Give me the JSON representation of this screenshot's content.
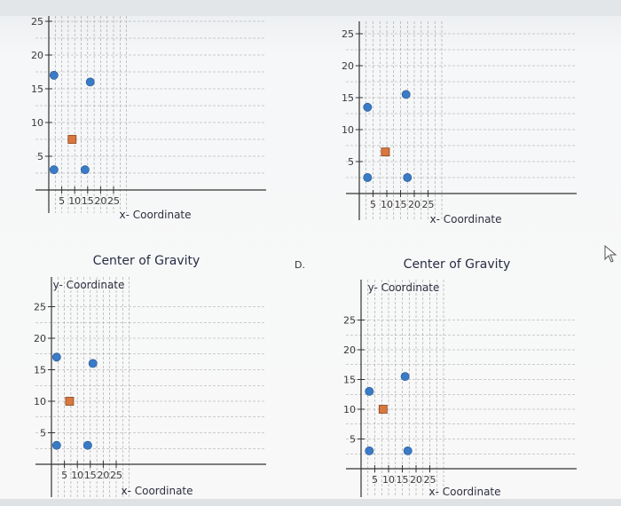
{
  "icons": {
    "pointer": "mouse-pointer-icon"
  },
  "colors": {
    "circle_marker": "#3a7bc8",
    "square_marker": "#d8773f",
    "grid": "#a0a0a0",
    "axis": "#333333"
  },
  "chart_data": [
    {
      "type": "scatter",
      "option": "",
      "title": "",
      "xlabel": "x- Coordinate",
      "ylabel": "",
      "xlim": [
        -1,
        30
      ],
      "ylim": [
        -3,
        27
      ],
      "xticks": [
        "5",
        "10",
        "15",
        "20",
        "25"
      ],
      "yticks": [
        "5",
        "10",
        "15",
        "20",
        "25"
      ],
      "grid": true,
      "series": [
        {
          "marker": "circle",
          "points": [
            [
              2,
              17
            ],
            [
              2,
              3
            ],
            [
              16,
              16
            ],
            [
              14,
              3
            ]
          ]
        },
        {
          "marker": "square",
          "points": [
            [
              9,
              7.5
            ]
          ]
        }
      ]
    },
    {
      "type": "scatter",
      "option": "",
      "title": "",
      "xlabel": "x- Coordinate",
      "ylabel": "",
      "xlim": [
        -1,
        30
      ],
      "ylim": [
        -3,
        27
      ],
      "xticks": [
        "5",
        "10",
        "15",
        "20",
        "25"
      ],
      "yticks": [
        "5",
        "10",
        "15",
        "20",
        "25"
      ],
      "grid": true,
      "series": [
        {
          "marker": "circle",
          "points": [
            [
              3,
              13.5
            ],
            [
              3,
              2.5
            ],
            [
              17,
              15.5
            ],
            [
              17.5,
              2.5
            ]
          ]
        },
        {
          "marker": "square",
          "points": [
            [
              9.5,
              6.5
            ]
          ]
        }
      ]
    },
    {
      "type": "scatter",
      "option": "",
      "title": "Center of Gravity",
      "xlabel": "x- Coordinate",
      "ylabel": "y- Coordinate",
      "xlim": [
        -1,
        30
      ],
      "ylim": [
        -3,
        27
      ],
      "xticks": [
        "5",
        "10",
        "15",
        "20",
        "25"
      ],
      "yticks": [
        "5",
        "10",
        "15",
        "20",
        "25"
      ],
      "grid": true,
      "series": [
        {
          "marker": "circle",
          "points": [
            [
              2,
              17
            ],
            [
              2,
              3
            ],
            [
              16,
              16
            ],
            [
              14,
              3
            ]
          ]
        },
        {
          "marker": "square",
          "points": [
            [
              7,
              10
            ]
          ]
        }
      ]
    },
    {
      "type": "scatter",
      "option": "D.",
      "title": "Center of Gravity",
      "xlabel": "x- Coordinate",
      "ylabel": "y- Coordinate",
      "xlim": [
        -1,
        30
      ],
      "ylim": [
        -3,
        27
      ],
      "xticks": [
        "5",
        "10",
        "15",
        "20",
        "25"
      ],
      "yticks": [
        "5",
        "10",
        "15",
        "20",
        "25"
      ],
      "grid": true,
      "series": [
        {
          "marker": "circle",
          "points": [
            [
              3,
              13
            ],
            [
              3,
              3
            ],
            [
              16,
              15.5
            ],
            [
              17,
              3
            ]
          ]
        },
        {
          "marker": "square",
          "points": [
            [
              8,
              10
            ]
          ]
        }
      ]
    }
  ]
}
